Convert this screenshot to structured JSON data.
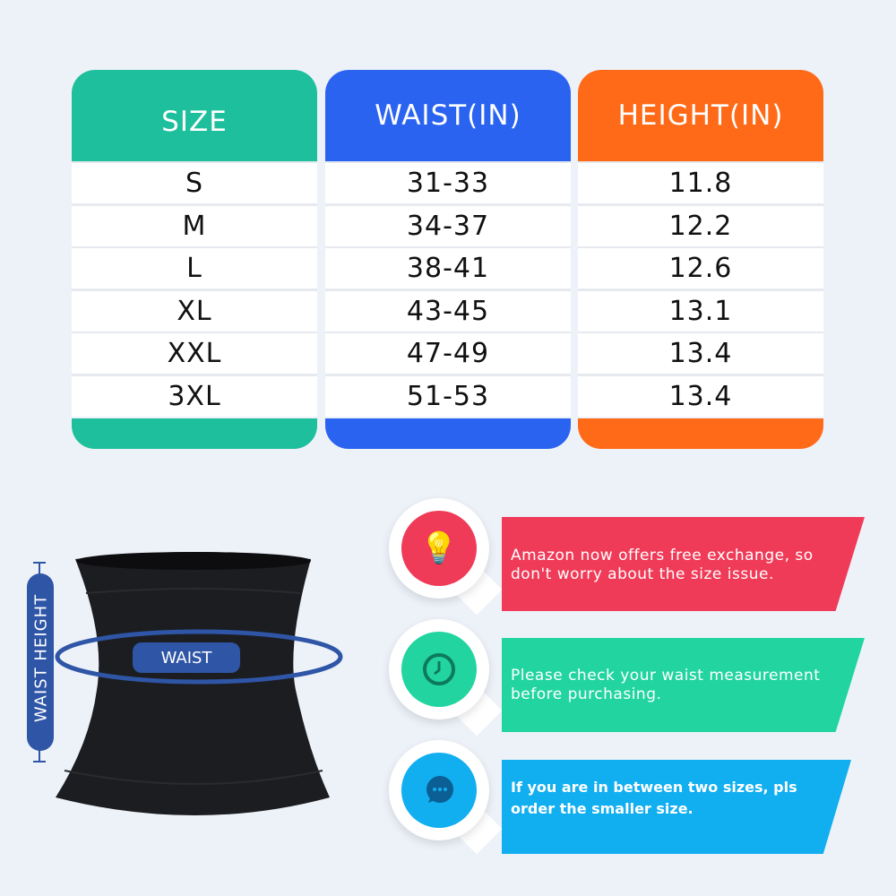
{
  "colors": {
    "size": "#1ebf9c",
    "waist": "#2b63f1",
    "height": "#ff6a18",
    "red": "#f03b58",
    "green": "#22d5a0",
    "blue": "#11aef0",
    "label": "#2e55a6"
  },
  "table": {
    "headers": [
      "SIZE",
      "WAIST(IN)",
      "HEIGHT(IN)"
    ],
    "rows": [
      [
        "S",
        "31-33",
        "11.8"
      ],
      [
        "M",
        "34-37",
        "12.2"
      ],
      [
        "L",
        "38-41",
        "12.6"
      ],
      [
        "XL",
        "43-45",
        "13.1"
      ],
      [
        "XXL",
        "47-49",
        "13.4"
      ],
      [
        "3XL",
        "51-53",
        "13.4"
      ]
    ]
  },
  "product": {
    "waist_label": "WAIST",
    "height_label": "WAIST HEIGHT"
  },
  "tips": [
    {
      "icon": "lightbulb-check-icon",
      "text": "Amazon now offers free exchange, so don't worry about the size issue."
    },
    {
      "icon": "clock-icon",
      "text": "Please check your waist measurement before purchasing."
    },
    {
      "icon": "chat-bubble-icon",
      "text": "If you are in between two sizes, pls order the smaller size."
    }
  ]
}
